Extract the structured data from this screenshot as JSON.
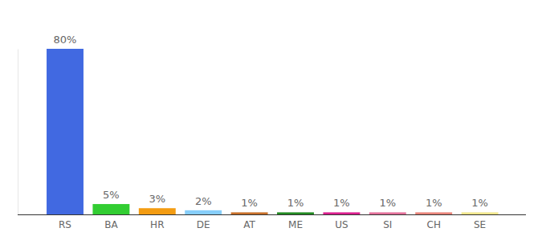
{
  "chart_data": {
    "type": "bar",
    "categories": [
      "RS",
      "BA",
      "HR",
      "DE",
      "AT",
      "ME",
      "US",
      "SI",
      "CH",
      "SE"
    ],
    "values": [
      80,
      5,
      3,
      2,
      1,
      1,
      1,
      1,
      1,
      1
    ],
    "value_labels": [
      "80%",
      "5%",
      "3%",
      "2%",
      "1%",
      "1%",
      "1%",
      "1%",
      "1%",
      "1%"
    ],
    "colors": [
      "#4169e1",
      "#32cd32",
      "#f39c12",
      "#87cefa",
      "#c8702a",
      "#228b22",
      "#dc1f8f",
      "#e4719b",
      "#e9847a",
      "#f0e68c"
    ],
    "ylim": [
      0,
      80
    ],
    "data_labels": true,
    "tick_labels": "x"
  }
}
